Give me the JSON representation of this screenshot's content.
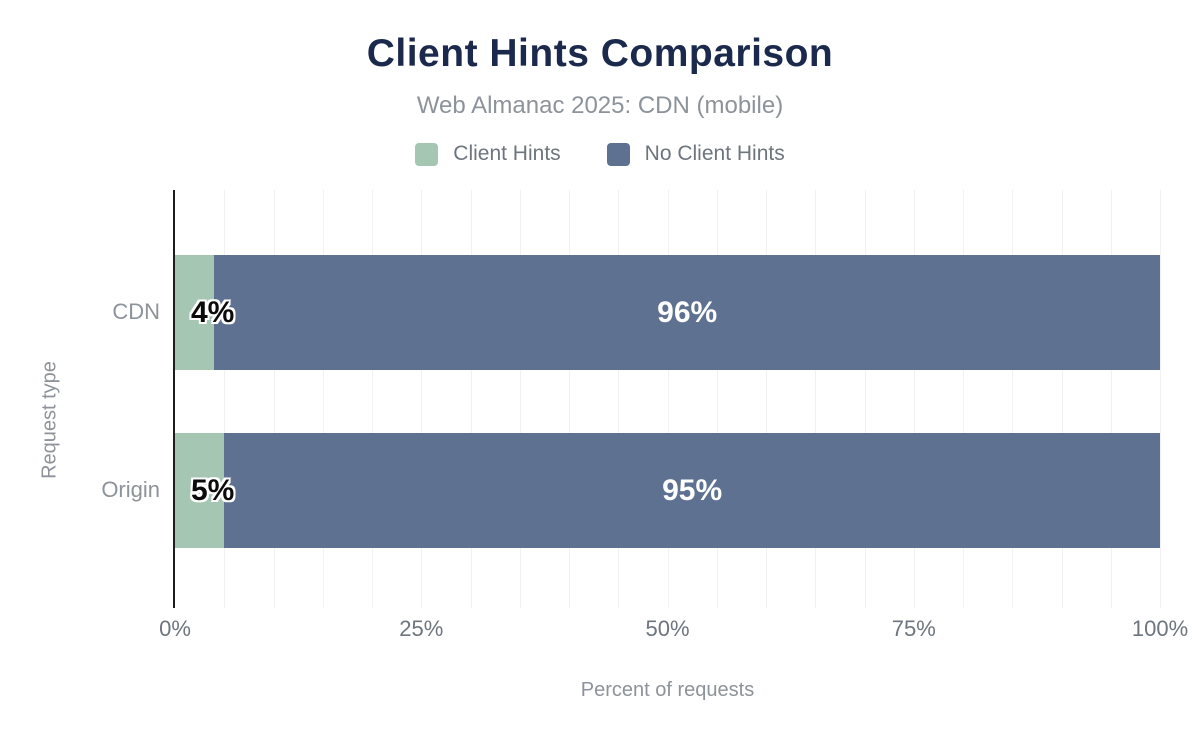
{
  "title": "Client Hints Comparison",
  "subtitle": "Web Almanac 2025: CDN (mobile)",
  "colors": {
    "title": "#1b2a4c",
    "subtitle_text": "#8d939b",
    "axis_text": "#6d757f",
    "grid": "#f1f1f3",
    "axis_line": "#1d1d1f",
    "client_hints_green": "#a4c6b3",
    "no_client_hints_blue": "#5e7190",
    "bar_label_dark": "#0b0b0b",
    "bar_label_light": "#ffffff"
  },
  "chart_data": {
    "type": "bar",
    "orientation": "horizontal",
    "stacked": true,
    "title": "Client Hints Comparison",
    "subtitle": "Web Almanac 2025: CDN (mobile)",
    "categories": [
      "CDN",
      "Origin"
    ],
    "series": [
      {
        "name": "Client Hints",
        "color": "#a4c6b3",
        "values": [
          4,
          5
        ],
        "labels": [
          "4%",
          "5%"
        ],
        "label_style": "dark-start"
      },
      {
        "name": "No Client Hints",
        "color": "#5e7190",
        "values": [
          96,
          95
        ],
        "labels": [
          "96%",
          "95%"
        ],
        "label_style": "light-center"
      }
    ],
    "xlabel": "Percent of requests",
    "ylabel": "Request type",
    "xlim": [
      0,
      100
    ],
    "x_ticks": [
      {
        "value": 0,
        "label": "0%"
      },
      {
        "value": 25,
        "label": "25%"
      },
      {
        "value": 50,
        "label": "50%"
      },
      {
        "value": 75,
        "label": "75%"
      },
      {
        "value": 100,
        "label": "100%"
      }
    ],
    "minor_grid_step_percent": 5,
    "legend_position": "top-center",
    "grid": "vertical"
  },
  "legend": {
    "items": [
      {
        "label": "Client Hints",
        "color": "#a4c6b3"
      },
      {
        "label": "No Client Hints",
        "color": "#5e7190"
      }
    ]
  }
}
